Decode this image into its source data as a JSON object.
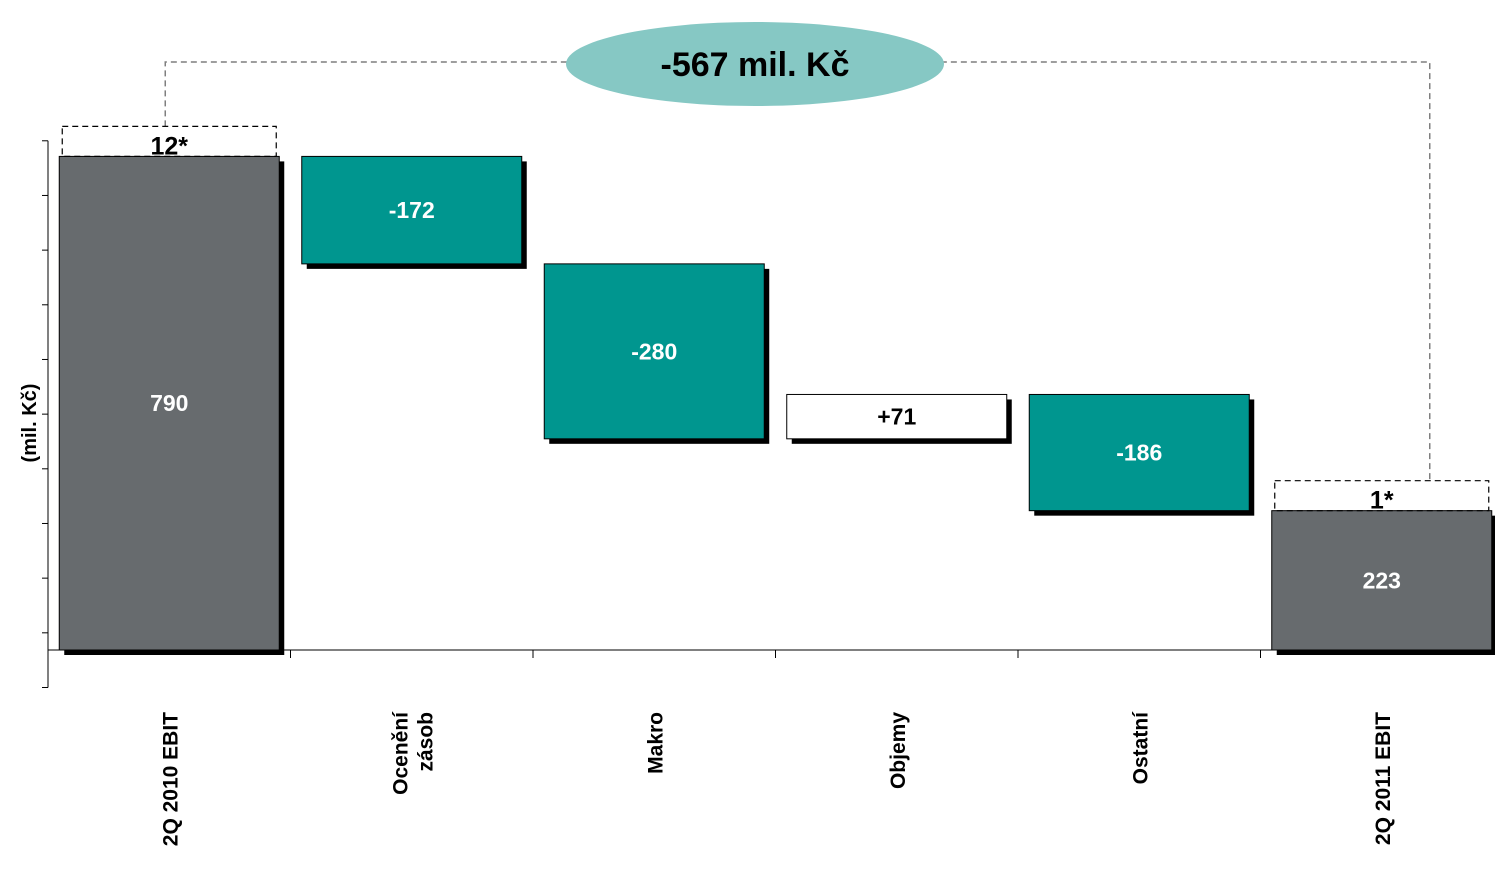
{
  "chart_data": {
    "type": "bar",
    "subtype": "waterfall",
    "ylabel": "(mil. Kč)",
    "categories": [
      "2Q 2010 EBIT",
      "Ocenění zásob",
      "Makro",
      "Objemy",
      "Ostatní",
      "2Q 2011 EBIT"
    ],
    "category_lines": [
      [
        "2Q 2010 EBIT"
      ],
      [
        "Ocenění",
        "zásob"
      ],
      [
        "Makro"
      ],
      [
        "Objemy"
      ],
      [
        "Ostatní"
      ],
      [
        "2Q 2011 EBIT"
      ]
    ],
    "steps": [
      {
        "kind": "total",
        "value": 790,
        "label": "790",
        "extra_value": 12,
        "extra_label": "12*"
      },
      {
        "kind": "delta",
        "value": -172,
        "label": "-172"
      },
      {
        "kind": "delta",
        "value": -280,
        "label": "-280"
      },
      {
        "kind": "delta",
        "value": 71,
        "label": "+71"
      },
      {
        "kind": "delta",
        "value": -186,
        "label": "-186"
      },
      {
        "kind": "total",
        "value": 223,
        "label": "223",
        "extra_value": 1,
        "extra_label": "1*"
      }
    ],
    "difference": {
      "value": -567,
      "label": "-567 mil. Kč"
    },
    "ylim": [
      -60,
      815
    ],
    "colors": {
      "total": "#676b6e",
      "decrease": "#00968f",
      "increase": "#ffffff",
      "callout": "#86c8c4",
      "shadow": "#000000"
    },
    "grid": false
  }
}
